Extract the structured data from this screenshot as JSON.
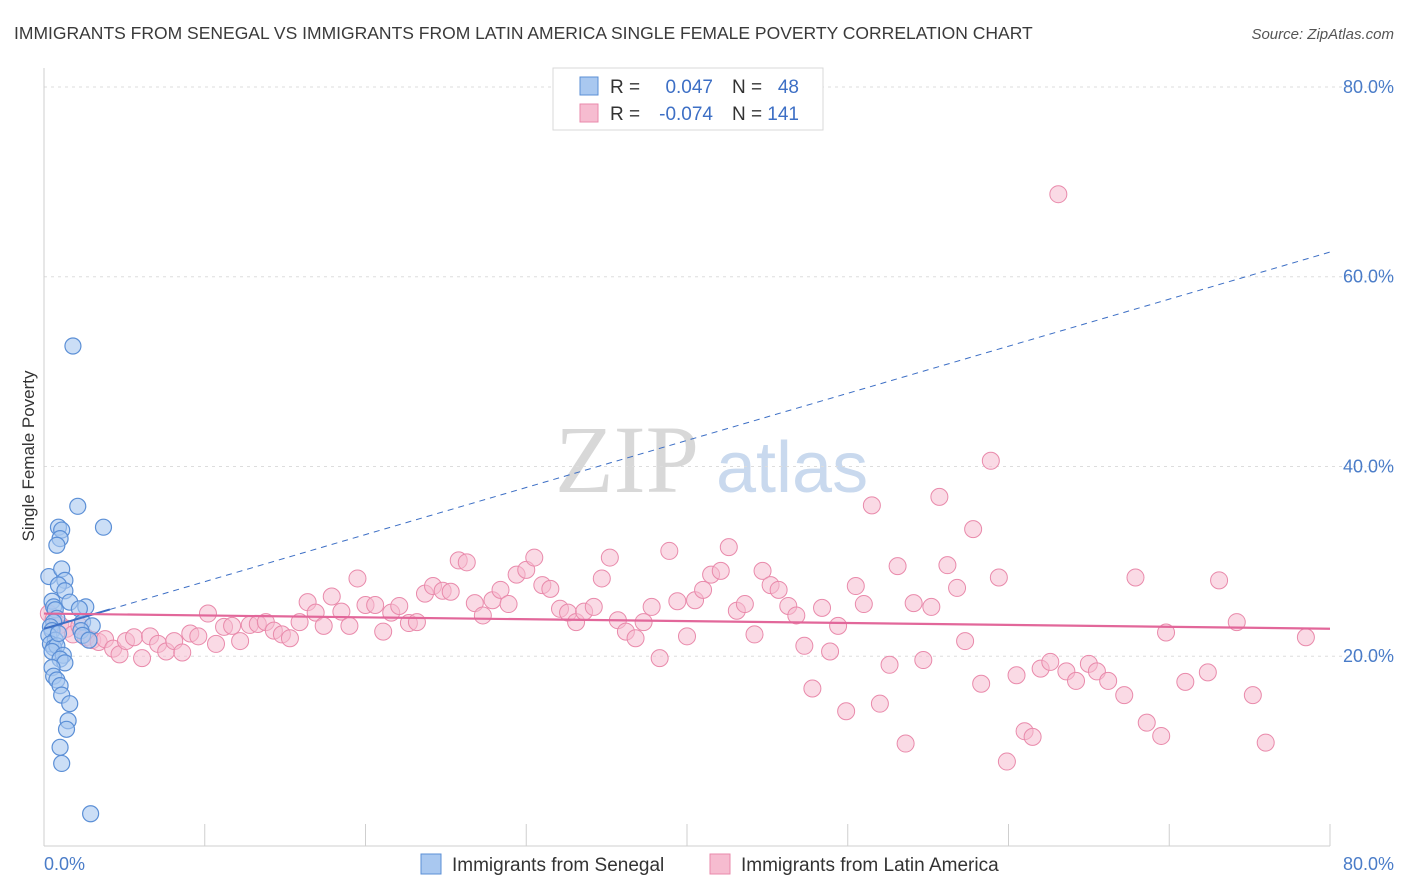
{
  "header": {
    "title": "IMMIGRANTS FROM SENEGAL VS IMMIGRANTS FROM LATIN AMERICA SINGLE FEMALE POVERTY CORRELATION CHART",
    "source": "Source: ZipAtlas.com"
  },
  "watermark": {
    "zip": "ZIP",
    "atlas": "atlas"
  },
  "stats_legend": {
    "rows": [
      {
        "r_label": "R =",
        "r_value": "0.047",
        "n_label": "N =",
        "n_value": "48"
      },
      {
        "r_label": "R =",
        "r_value": "-0.074",
        "n_label": "N =",
        "n_value": "141"
      }
    ]
  },
  "colors": {
    "senegal_fill": "#a9c8f0",
    "senegal_stroke": "#5b8fd6",
    "senegal_line": "#3d6fc5",
    "latam_fill": "#f6bcd0",
    "latam_stroke": "#e98aab",
    "latam_line": "#e2679a",
    "grid": "#dddddd",
    "tick_text": "#4a7cc8"
  },
  "chart_data": {
    "type": "scatter",
    "title": "IMMIGRANTS FROM SENEGAL VS IMMIGRANTS FROM LATIN AMERICA SINGLE FEMALE POVERTY CORRELATION CHART",
    "xlabel": "",
    "ylabel": "Single Female Poverty",
    "xlim": [
      0,
      80
    ],
    "ylim": [
      0,
      82
    ],
    "x_tick_labels": [
      "0.0%",
      "80.0%"
    ],
    "y_ticks": [
      20,
      40,
      60,
      80
    ],
    "y_tick_labels": [
      "20.0%",
      "40.0%",
      "60.0%",
      "80.0%"
    ],
    "grid": true,
    "legend_position": "bottom-center",
    "series": [
      {
        "name": "Immigrants from Senegal",
        "r": 0.047,
        "n": 48,
        "trend": {
          "x0": 0,
          "y0": 22.9,
          "x1": 80,
          "y1": 62.6,
          "solid_until": 4.1
        },
        "points": [
          [
            0.3,
            28.4
          ],
          [
            0.5,
            25.8
          ],
          [
            0.6,
            25.2
          ],
          [
            0.7,
            24.9
          ],
          [
            0.8,
            24.0
          ],
          [
            0.6,
            23.6
          ],
          [
            0.4,
            23.1
          ],
          [
            0.5,
            22.7
          ],
          [
            0.3,
            22.2
          ],
          [
            0.7,
            21.7
          ],
          [
            0.4,
            21.3
          ],
          [
            0.6,
            20.9
          ],
          [
            0.8,
            21.1
          ],
          [
            0.5,
            20.5
          ],
          [
            1.2,
            20.1
          ],
          [
            1.0,
            19.7
          ],
          [
            1.3,
            19.3
          ],
          [
            0.5,
            18.8
          ],
          [
            0.6,
            17.9
          ],
          [
            0.8,
            17.5
          ],
          [
            1.0,
            16.9
          ],
          [
            1.1,
            15.9
          ],
          [
            1.6,
            15.0
          ],
          [
            1.5,
            13.2
          ],
          [
            1.4,
            12.3
          ],
          [
            1.0,
            10.4
          ],
          [
            1.1,
            8.7
          ],
          [
            2.9,
            3.4
          ],
          [
            1.8,
            52.7
          ],
          [
            2.1,
            35.8
          ],
          [
            3.7,
            33.6
          ],
          [
            0.9,
            33.6
          ],
          [
            1.1,
            33.3
          ],
          [
            1.0,
            32.4
          ],
          [
            0.8,
            31.7
          ],
          [
            1.1,
            29.2
          ],
          [
            1.3,
            28.0
          ],
          [
            0.9,
            27.5
          ],
          [
            1.3,
            26.9
          ],
          [
            1.6,
            25.7
          ],
          [
            2.6,
            25.2
          ],
          [
            2.2,
            25.0
          ],
          [
            2.4,
            23.6
          ],
          [
            3.0,
            23.2
          ],
          [
            2.3,
            22.7
          ],
          [
            2.4,
            22.2
          ],
          [
            2.8,
            21.7
          ],
          [
            0.9,
            22.4
          ]
        ]
      },
      {
        "name": "Immigrants from Latin America",
        "r": -0.074,
        "n": 141,
        "trend": {
          "x0": 0,
          "y0": 24.5,
          "x1": 80,
          "y1": 22.9
        },
        "points": [
          [
            0.3,
            24.5
          ],
          [
            0.6,
            23.9
          ],
          [
            1.0,
            23.3
          ],
          [
            1.4,
            22.9
          ],
          [
            1.8,
            22.3
          ],
          [
            2.2,
            23.2
          ],
          [
            2.6,
            22.0
          ],
          [
            3.0,
            21.7
          ],
          [
            3.4,
            21.5
          ],
          [
            3.8,
            21.8
          ],
          [
            4.3,
            20.8
          ],
          [
            4.7,
            20.2
          ],
          [
            5.1,
            21.6
          ],
          [
            5.6,
            22.0
          ],
          [
            6.1,
            19.8
          ],
          [
            6.6,
            22.1
          ],
          [
            7.1,
            21.3
          ],
          [
            7.6,
            20.5
          ],
          [
            8.1,
            21.6
          ],
          [
            8.6,
            20.4
          ],
          [
            9.1,
            22.4
          ],
          [
            9.6,
            22.1
          ],
          [
            10.2,
            24.5
          ],
          [
            10.7,
            21.3
          ],
          [
            11.2,
            23.1
          ],
          [
            11.7,
            23.2
          ],
          [
            12.2,
            21.6
          ],
          [
            12.8,
            23.3
          ],
          [
            13.3,
            23.4
          ],
          [
            13.8,
            23.6
          ],
          [
            14.3,
            22.7
          ],
          [
            14.8,
            22.3
          ],
          [
            15.3,
            21.9
          ],
          [
            15.9,
            23.6
          ],
          [
            16.4,
            25.7
          ],
          [
            16.9,
            24.6
          ],
          [
            17.4,
            23.2
          ],
          [
            17.9,
            26.3
          ],
          [
            18.5,
            24.7
          ],
          [
            19.0,
            23.2
          ],
          [
            19.5,
            28.2
          ],
          [
            20.0,
            25.4
          ],
          [
            20.6,
            25.4
          ],
          [
            21.1,
            22.6
          ],
          [
            21.6,
            24.6
          ],
          [
            22.1,
            25.3
          ],
          [
            22.7,
            23.5
          ],
          [
            23.2,
            23.6
          ],
          [
            23.7,
            26.6
          ],
          [
            24.2,
            27.4
          ],
          [
            24.8,
            26.9
          ],
          [
            25.3,
            26.8
          ],
          [
            25.8,
            30.1
          ],
          [
            26.3,
            29.9
          ],
          [
            26.8,
            25.6
          ],
          [
            27.3,
            24.3
          ],
          [
            27.9,
            25.9
          ],
          [
            28.4,
            27.0
          ],
          [
            28.9,
            25.5
          ],
          [
            29.4,
            28.6
          ],
          [
            30.0,
            29.1
          ],
          [
            30.5,
            30.4
          ],
          [
            31.0,
            27.5
          ],
          [
            31.5,
            27.1
          ],
          [
            32.1,
            25.0
          ],
          [
            32.6,
            24.6
          ],
          [
            33.1,
            23.6
          ],
          [
            33.6,
            24.7
          ],
          [
            34.2,
            25.2
          ],
          [
            34.7,
            28.2
          ],
          [
            35.2,
            30.4
          ],
          [
            35.7,
            23.8
          ],
          [
            36.2,
            22.6
          ],
          [
            36.8,
            21.9
          ],
          [
            37.3,
            23.6
          ],
          [
            37.8,
            25.2
          ],
          [
            38.3,
            19.8
          ],
          [
            38.9,
            31.1
          ],
          [
            39.4,
            25.8
          ],
          [
            40.0,
            22.1
          ],
          [
            40.5,
            25.9
          ],
          [
            41.0,
            27.0
          ],
          [
            41.5,
            28.6
          ],
          [
            42.1,
            29.0
          ],
          [
            42.6,
            31.5
          ],
          [
            43.1,
            24.8
          ],
          [
            43.6,
            25.5
          ],
          [
            44.2,
            22.3
          ],
          [
            44.7,
            29.0
          ],
          [
            45.2,
            27.5
          ],
          [
            45.7,
            27.0
          ],
          [
            46.3,
            25.3
          ],
          [
            46.8,
            24.3
          ],
          [
            47.3,
            21.1
          ],
          [
            47.8,
            16.6
          ],
          [
            48.4,
            25.1
          ],
          [
            48.9,
            20.5
          ],
          [
            49.4,
            23.2
          ],
          [
            49.9,
            14.2
          ],
          [
            50.5,
            27.4
          ],
          [
            51.0,
            25.5
          ],
          [
            51.5,
            35.9
          ],
          [
            52.0,
            15.0
          ],
          [
            52.6,
            19.1
          ],
          [
            53.1,
            29.5
          ],
          [
            53.6,
            10.8
          ],
          [
            54.1,
            25.6
          ],
          [
            54.7,
            19.6
          ],
          [
            55.2,
            25.2
          ],
          [
            55.7,
            36.8
          ],
          [
            56.2,
            29.6
          ],
          [
            56.8,
            27.2
          ],
          [
            57.3,
            21.6
          ],
          [
            57.8,
            33.4
          ],
          [
            58.3,
            17.1
          ],
          [
            58.9,
            40.6
          ],
          [
            59.4,
            28.3
          ],
          [
            59.9,
            8.9
          ],
          [
            60.5,
            18.0
          ],
          [
            61.0,
            12.1
          ],
          [
            61.5,
            11.5
          ],
          [
            62.0,
            18.7
          ],
          [
            62.6,
            19.4
          ],
          [
            63.1,
            68.7
          ],
          [
            63.6,
            18.4
          ],
          [
            64.2,
            17.4
          ],
          [
            65.0,
            19.2
          ],
          [
            65.5,
            18.4
          ],
          [
            66.2,
            17.4
          ],
          [
            67.2,
            15.9
          ],
          [
            67.9,
            28.3
          ],
          [
            68.6,
            13.0
          ],
          [
            69.8,
            22.5
          ],
          [
            69.5,
            11.6
          ],
          [
            71.0,
            17.3
          ],
          [
            72.4,
            18.3
          ],
          [
            73.1,
            28.0
          ],
          [
            74.2,
            23.6
          ],
          [
            75.2,
            15.9
          ],
          [
            76.0,
            10.9
          ],
          [
            78.5,
            22.0
          ]
        ]
      }
    ]
  },
  "bottom_legend": {
    "items": [
      {
        "label": "Immigrants from Senegal"
      },
      {
        "label": "Immigrants from Latin America"
      }
    ]
  }
}
